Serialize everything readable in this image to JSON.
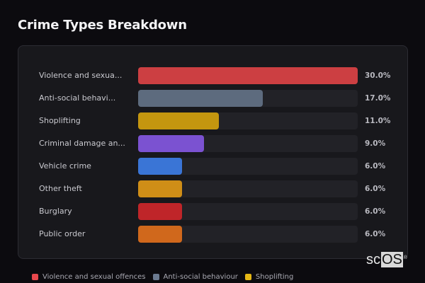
{
  "header": {
    "title": "Crime Types Breakdown"
  },
  "chart_data": {
    "type": "bar",
    "orientation": "horizontal",
    "title": "Crime Types Breakdown",
    "xlabel": "",
    "ylabel": "",
    "xlim": [
      0,
      30
    ],
    "grid": false,
    "legend_position": "bottom",
    "categories": [
      "Violence and sexual offences",
      "Anti-social behaviour",
      "Shoplifting",
      "Criminal damage and arson",
      "Vehicle crime",
      "Other theft",
      "Burglary",
      "Public order"
    ],
    "values": [
      30.0,
      17.0,
      11.0,
      9.0,
      6.0,
      6.0,
      6.0,
      6.0
    ],
    "unit": "%"
  },
  "rows": [
    {
      "label": "Violence and sexua...",
      "value_label": "30.0%",
      "value": 30.0,
      "color": "#cc3f42"
    },
    {
      "label": "Anti-social behavi...",
      "value_label": "17.0%",
      "value": 17.0,
      "color": "#5d6b7e"
    },
    {
      "label": "Shoplifting",
      "value_label": "11.0%",
      "value": 11.0,
      "color": "#c4960f"
    },
    {
      "label": "Criminal damage an...",
      "value_label": "9.0%",
      "value": 9.0,
      "color": "#7b52d1"
    },
    {
      "label": "Vehicle crime",
      "value_label": "6.0%",
      "value": 6.0,
      "color": "#3a75d6"
    },
    {
      "label": "Other theft",
      "value_label": "6.0%",
      "value": 6.0,
      "color": "#cf8e17"
    },
    {
      "label": "Burglary",
      "value_label": "6.0%",
      "value": 6.0,
      "color": "#bf2529"
    },
    {
      "label": "Public order",
      "value_label": "6.0%",
      "value": 6.0,
      "color": "#d0681c"
    }
  ],
  "legend": [
    {
      "label": "Violence and sexual offences",
      "color": "#e8484d"
    },
    {
      "label": "Anti-social behaviour",
      "color": "#6b7a90"
    },
    {
      "label": "Shoplifting",
      "color": "#e5b715"
    }
  ],
  "watermark": {
    "prefix": "sc",
    "boxed": "OS",
    "mark": "®"
  }
}
